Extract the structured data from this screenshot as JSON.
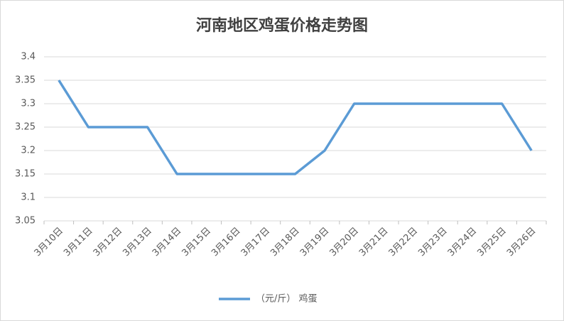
{
  "chart_data": {
    "type": "line",
    "title": "河南地区鸡蛋价格走势图",
    "categories": [
      "3月10日",
      "3月11日",
      "3月12日",
      "3月13日",
      "3月14日",
      "3月15日",
      "3月16日",
      "3月17日",
      "3月18日",
      "3月19日",
      "3月20日",
      "3月21日",
      "3月22日",
      "3月23日",
      "3月24日",
      "3月25日",
      "3月26日"
    ],
    "series": [
      {
        "name": "（元/斤） 鸡蛋",
        "color": "#5b9bd5",
        "values": [
          3.35,
          3.25,
          3.25,
          3.25,
          3.15,
          3.15,
          3.15,
          3.15,
          3.15,
          3.2,
          3.3,
          3.3,
          3.3,
          3.3,
          3.3,
          3.3,
          3.2
        ]
      }
    ],
    "ylim": [
      3.05,
      3.4
    ],
    "yticks": [
      3.05,
      3.1,
      3.15,
      3.2,
      3.25,
      3.3,
      3.35,
      3.4
    ],
    "grid": true,
    "legend": "bottom"
  }
}
